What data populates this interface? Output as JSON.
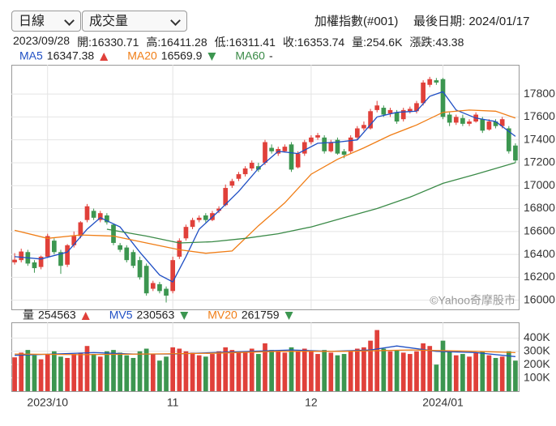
{
  "controls": {
    "period": "日線",
    "indicator": "成交量"
  },
  "header": {
    "title": "加權指數(#001)",
    "last_date": "最後日期: 2024/01/17",
    "quote": [
      "2023/09/28",
      "開:16330.71",
      "高:16411.28",
      "低:16311.41",
      "收:16353.74",
      "量:254.6K",
      "漲跌:43.38"
    ]
  },
  "chart_data": [
    {
      "type": "candlestick",
      "up_color": "#e0403a",
      "down_color": "#3c9650",
      "grid": true,
      "ylim": [
        15920,
        18055
      ],
      "yticks": [
        16000,
        16200,
        16400,
        16600,
        16800,
        17000,
        17200,
        17400,
        17600,
        17800
      ],
      "watermark": "©Yahoo奇摩股市",
      "ohlc": [
        [
          16330.71,
          16411.28,
          16311.41,
          16353.74
        ],
        [
          16350,
          16450,
          16330,
          16425
        ],
        [
          16420,
          16440,
          16300,
          16320
        ],
        [
          16330,
          16350,
          16240,
          16280
        ],
        [
          16290,
          16390,
          16270,
          16380
        ],
        [
          16380,
          16580,
          16370,
          16560
        ],
        [
          16520,
          16540,
          16400,
          16420
        ],
        [
          16420,
          16440,
          16230,
          16300
        ],
        [
          16310,
          16490,
          16290,
          16480
        ],
        [
          16480,
          16600,
          16460,
          16560
        ],
        [
          16560,
          16690,
          16540,
          16680
        ],
        [
          16700,
          16840,
          16680,
          16820
        ],
        [
          16780,
          16800,
          16700,
          16720
        ],
        [
          16700,
          16780,
          16680,
          16760
        ],
        [
          16740,
          16760,
          16660,
          16680
        ],
        [
          16660,
          16670,
          16480,
          16500
        ],
        [
          16480,
          16500,
          16420,
          16440
        ],
        [
          16460,
          16480,
          16330,
          16350
        ],
        [
          16420,
          16440,
          16280,
          16300
        ],
        [
          16350,
          16380,
          16180,
          16200
        ],
        [
          16300,
          16320,
          16040,
          16060
        ],
        [
          16100,
          16170,
          16080,
          16150
        ],
        [
          16140,
          16160,
          16060,
          16080
        ],
        [
          16100,
          16120,
          15980,
          16040
        ],
        [
          16080,
          16380,
          16060,
          16350
        ],
        [
          16380,
          16540,
          16360,
          16520
        ],
        [
          16540,
          16660,
          16520,
          16640
        ],
        [
          16640,
          16720,
          16620,
          16700
        ],
        [
          16700,
          16740,
          16680,
          16720
        ],
        [
          16740,
          16760,
          16680,
          16700
        ],
        [
          16700,
          16780,
          16690,
          16760
        ],
        [
          16780,
          16820,
          16760,
          16800
        ],
        [
          16830,
          17010,
          16820,
          16980
        ],
        [
          17000,
          17060,
          16980,
          17040
        ],
        [
          17060,
          17120,
          17040,
          17100
        ],
        [
          17100,
          17170,
          17080,
          17150
        ],
        [
          17150,
          17220,
          17130,
          17200
        ],
        [
          17170,
          17200,
          17120,
          17140
        ],
        [
          17200,
          17400,
          17180,
          17380
        ],
        [
          17330,
          17360,
          17280,
          17300
        ],
        [
          17280,
          17340,
          17260,
          17320
        ],
        [
          17300,
          17360,
          17290,
          17340
        ],
        [
          17360,
          17380,
          17120,
          17140
        ],
        [
          17160,
          17300,
          17150,
          17280
        ],
        [
          17280,
          17400,
          17260,
          17380
        ],
        [
          17380,
          17440,
          17360,
          17420
        ],
        [
          17420,
          17460,
          17400,
          17440
        ],
        [
          17420,
          17440,
          17280,
          17300
        ],
        [
          17300,
          17400,
          17290,
          17380
        ],
        [
          17400,
          17420,
          17270,
          17280
        ],
        [
          17300,
          17320,
          17240,
          17270
        ],
        [
          17300,
          17440,
          17280,
          17420
        ],
        [
          17420,
          17520,
          17400,
          17500
        ],
        [
          17500,
          17560,
          17480,
          17530
        ],
        [
          17500,
          17670,
          17490,
          17650
        ],
        [
          17660,
          17740,
          17640,
          17700
        ],
        [
          17680,
          17700,
          17600,
          17620
        ],
        [
          17630,
          17680,
          17600,
          17660
        ],
        [
          17640,
          17660,
          17540,
          17560
        ],
        [
          17580,
          17680,
          17560,
          17660
        ],
        [
          17650,
          17690,
          17630,
          17670
        ],
        [
          17650,
          17740,
          17630,
          17720
        ],
        [
          17720,
          17920,
          17700,
          17900
        ],
        [
          17880,
          17950,
          17860,
          17930
        ],
        [
          17920,
          17940,
          17880,
          17900
        ],
        [
          17930,
          17940,
          17580,
          17600
        ],
        [
          17620,
          17640,
          17520,
          17550
        ],
        [
          17550,
          17620,
          17530,
          17600
        ],
        [
          17590,
          17620,
          17520,
          17540
        ],
        [
          17540,
          17580,
          17520,
          17560
        ],
        [
          17560,
          17640,
          17550,
          17620
        ],
        [
          17580,
          17600,
          17460,
          17480
        ],
        [
          17490,
          17580,
          17480,
          17560
        ],
        [
          17560,
          17580,
          17500,
          17520
        ],
        [
          17520,
          17600,
          17500,
          17580
        ],
        [
          17500,
          17520,
          17280,
          17300
        ],
        [
          17350,
          17370,
          17200,
          17220
        ]
      ],
      "series": [
        {
          "name": "MA5",
          "color": "#1f4fc4",
          "legend_value": 16347.38,
          "trend": "up",
          "x": [
            0,
            4,
            8,
            11,
            13,
            16,
            19,
            22,
            24,
            26,
            28,
            31,
            34,
            37,
            40,
            43,
            46,
            49,
            52,
            55,
            58,
            61,
            63,
            65,
            67,
            70,
            73,
            76
          ],
          "values": [
            16380,
            16360,
            16420,
            16620,
            16720,
            16640,
            16420,
            16220,
            16160,
            16380,
            16620,
            16780,
            16950,
            17150,
            17300,
            17280,
            17370,
            17380,
            17400,
            17600,
            17640,
            17650,
            17780,
            17820,
            17660,
            17590,
            17560,
            17430
          ]
        },
        {
          "name": "MA20",
          "color": "#f07d15",
          "legend_value": 16569.9,
          "trend": "down",
          "x": [
            0,
            5,
            10,
            15,
            20,
            25,
            29,
            33,
            37,
            41,
            45,
            49,
            53,
            57,
            61,
            65,
            69,
            73,
            76
          ],
          "values": [
            16610,
            16540,
            16570,
            16560,
            16500,
            16440,
            16410,
            16430,
            16650,
            16850,
            17100,
            17230,
            17330,
            17440,
            17530,
            17640,
            17660,
            17650,
            17590
          ]
        },
        {
          "name": "MA60",
          "color": "#3a8a47",
          "legend_value": null,
          "legend_value_label": "-",
          "trend": null,
          "x": [
            14,
            20,
            25,
            30,
            35,
            40,
            45,
            50,
            55,
            60,
            65,
            70,
            76
          ],
          "values": [
            16620,
            16560,
            16500,
            16510,
            16540,
            16580,
            16640,
            16720,
            16800,
            16900,
            17020,
            17100,
            17200
          ]
        }
      ]
    },
    {
      "type": "bar",
      "name": "量",
      "legend_value": 254563,
      "trend": "up",
      "grid": true,
      "ylim": [
        0,
        518000
      ],
      "yticks": [
        {
          "value": 100000,
          "label": "100K"
        },
        {
          "value": 200000,
          "label": "200K"
        },
        {
          "value": 300000,
          "label": "300K"
        },
        {
          "value": 400000,
          "label": "400K"
        }
      ],
      "categories": [
        null,
        null,
        null,
        null,
        null,
        "2023/10",
        null,
        null,
        null,
        null,
        null,
        null,
        null,
        null,
        null,
        null,
        null,
        null,
        null,
        null,
        null,
        null,
        null,
        null,
        "11",
        null,
        null,
        null,
        null,
        null,
        null,
        null,
        null,
        null,
        null,
        null,
        null,
        null,
        null,
        null,
        null,
        null,
        null,
        null,
        null,
        "12",
        null,
        null,
        null,
        null,
        null,
        null,
        null,
        null,
        null,
        null,
        null,
        null,
        null,
        null,
        null,
        null,
        null,
        null,
        null,
        "2024/01",
        null,
        null,
        null,
        null,
        null,
        null,
        null,
        null,
        null,
        null,
        null
      ],
      "values": [
        254563,
        290000,
        310000,
        270000,
        240000,
        280000,
        300000,
        260000,
        250000,
        280000,
        290000,
        340000,
        280000,
        260000,
        300000,
        310000,
        290000,
        270000,
        250000,
        300000,
        320000,
        280000,
        230000,
        260000,
        330000,
        320000,
        300000,
        290000,
        270000,
        260000,
        280000,
        300000,
        330000,
        310000,
        290000,
        300000,
        320000,
        280000,
        360000,
        310000,
        300000,
        290000,
        330000,
        300000,
        320000,
        300000,
        280000,
        310000,
        290000,
        270000,
        280000,
        300000,
        320000,
        330000,
        380000,
        460000,
        320000,
        300000,
        310000,
        290000,
        280000,
        300000,
        360000,
        340000,
        200000,
        380000,
        300000,
        270000,
        280000,
        260000,
        290000,
        300000,
        270000,
        250000,
        260000,
        300000,
        230000
      ],
      "series": [
        {
          "name": "MV5",
          "color": "#1f4fc4",
          "legend_value": 230563,
          "trend": "down",
          "x": [
            0,
            6,
            12,
            18,
            24,
            30,
            36,
            42,
            48,
            54,
            58,
            64,
            70,
            76
          ],
          "values": [
            270000,
            280000,
            290000,
            280000,
            280000,
            290000,
            300000,
            310000,
            300000,
            310000,
            340000,
            300000,
            290000,
            260000
          ]
        },
        {
          "name": "MV20",
          "color": "#f07d15",
          "legend_value": 261759,
          "trend": "down",
          "x": [
            0,
            10,
            20,
            30,
            40,
            50,
            60,
            70,
            76
          ],
          "values": [
            280000,
            275000,
            280000,
            285000,
            300000,
            300000,
            310000,
            300000,
            290000
          ]
        }
      ]
    }
  ]
}
